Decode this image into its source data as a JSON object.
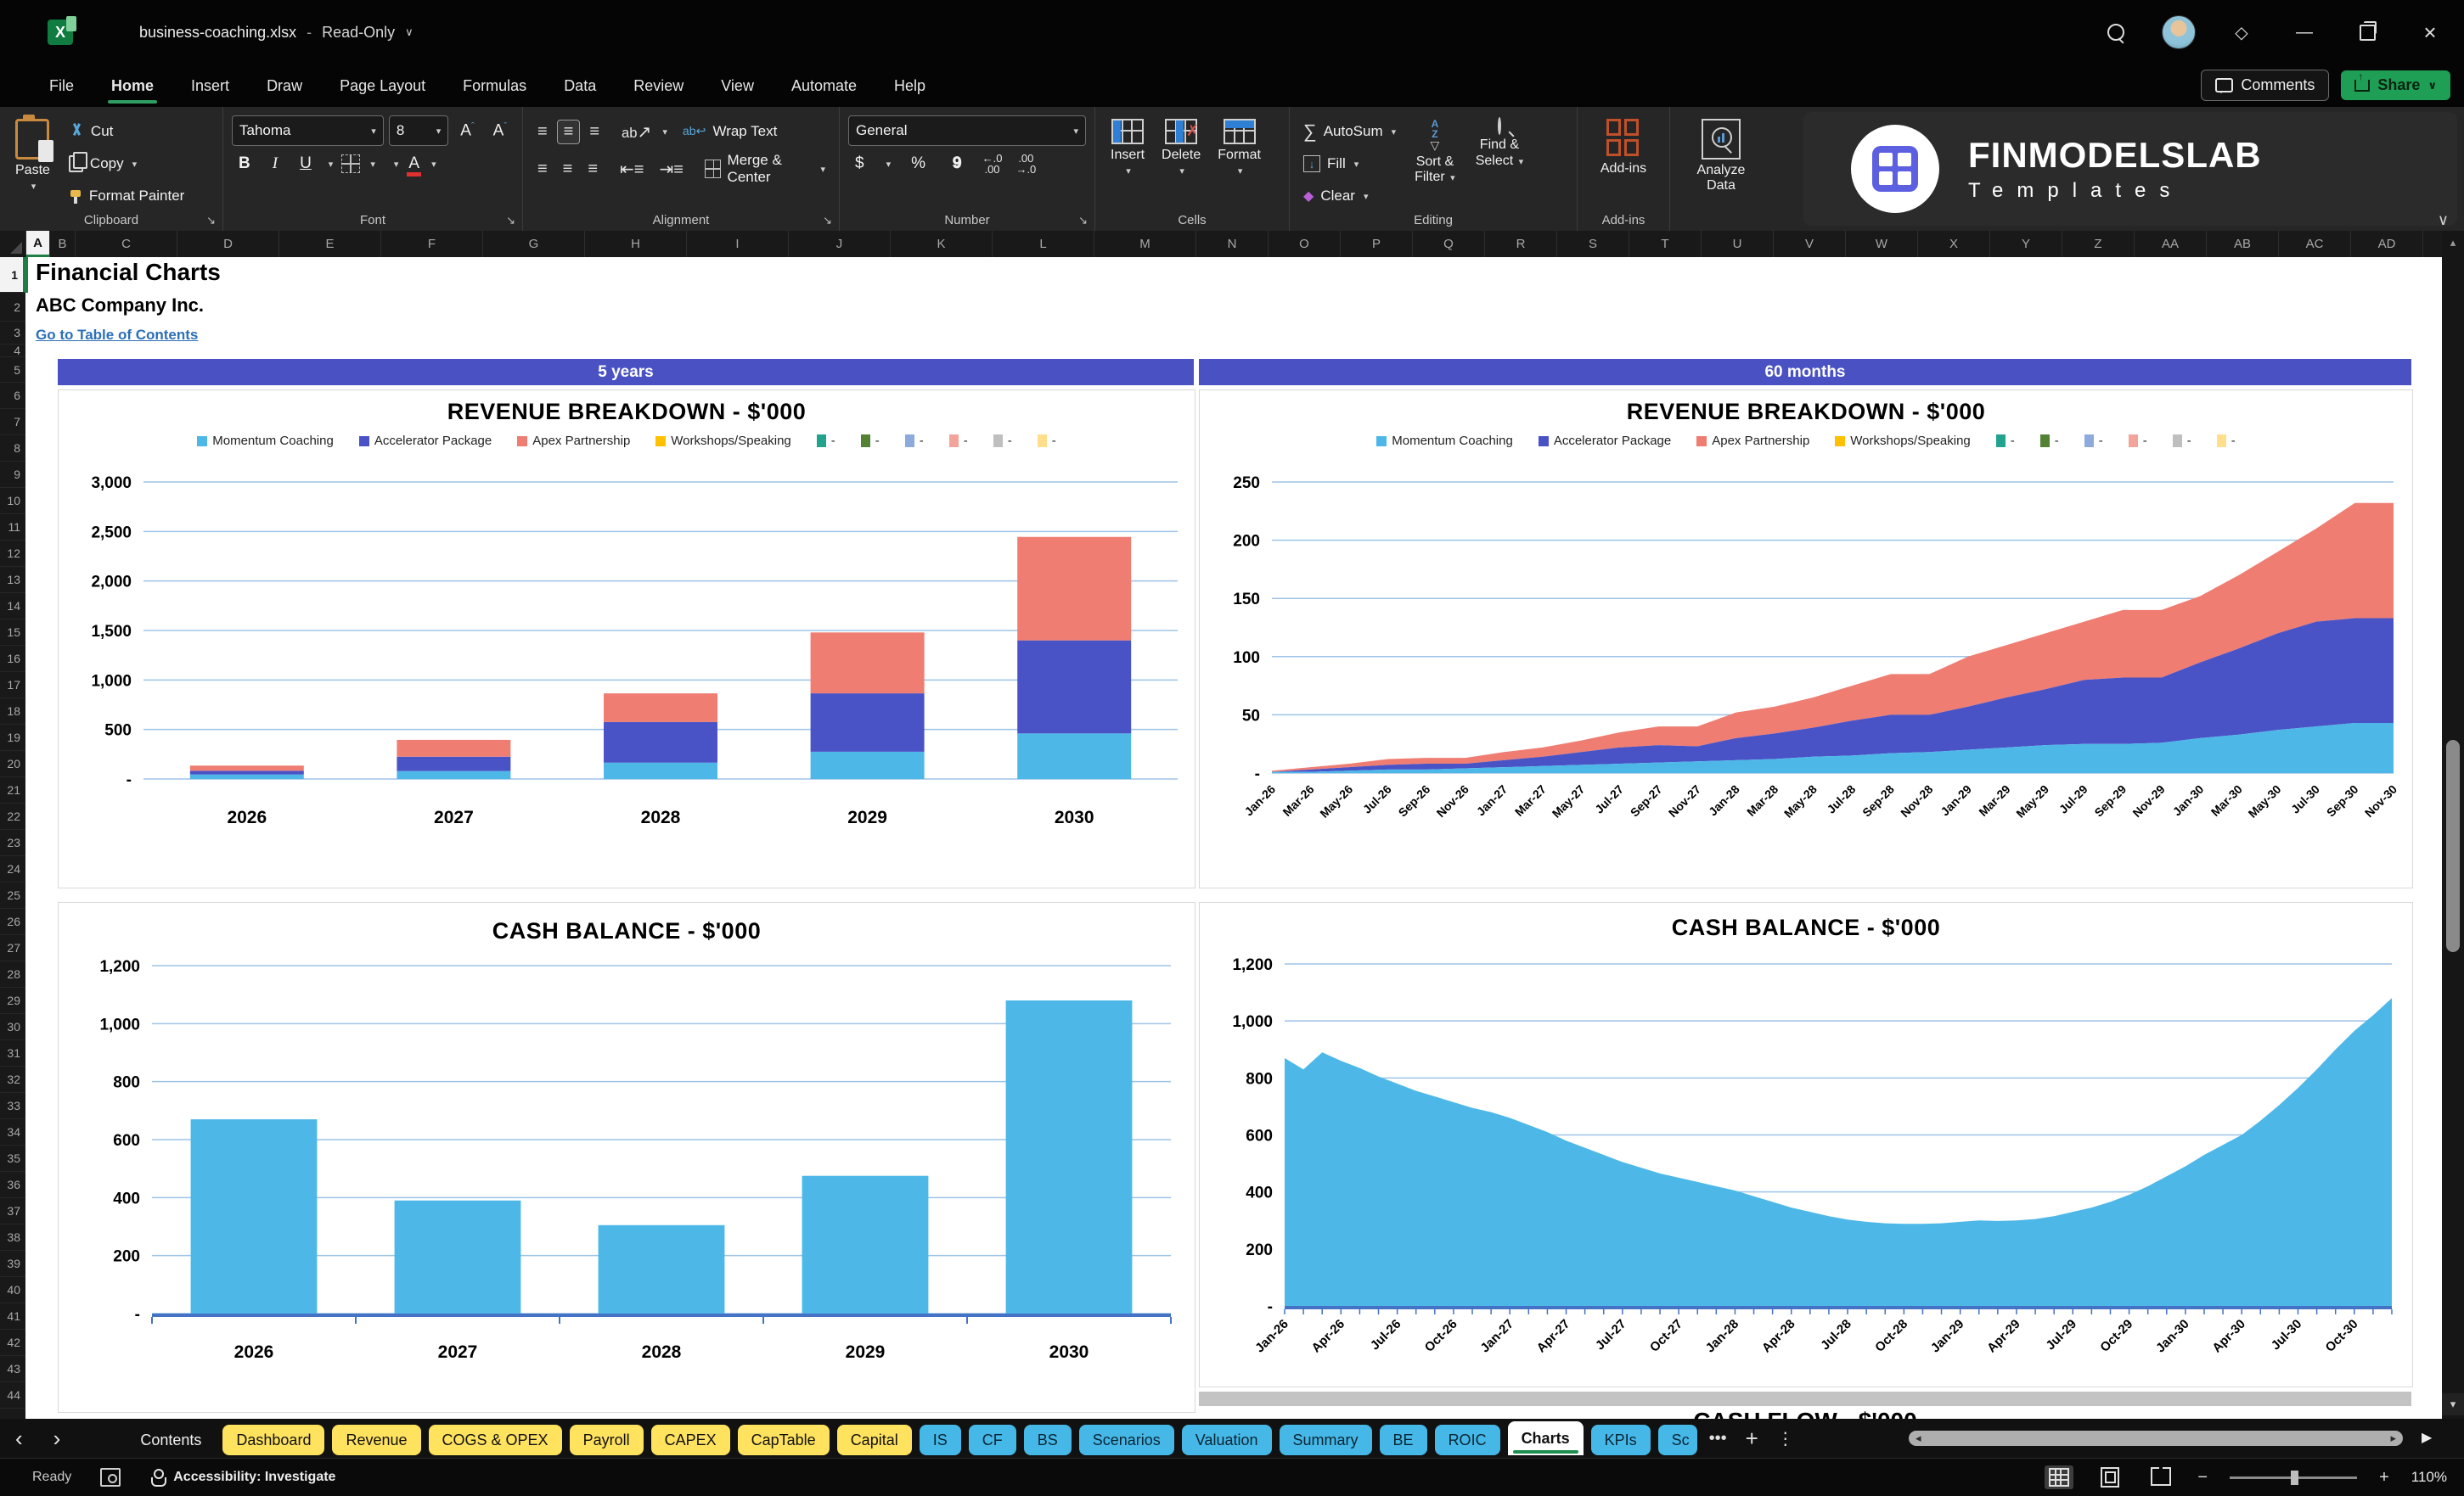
{
  "app": {
    "title": "business-coaching.xlsx",
    "mode": "Read-Only",
    "comments_label": "Comments",
    "share_label": "Share"
  },
  "menu": {
    "tabs": [
      "File",
      "Home",
      "Insert",
      "Draw",
      "Page Layout",
      "Formulas",
      "Data",
      "Review",
      "View",
      "Automate",
      "Help"
    ],
    "active": "Home"
  },
  "ribbon": {
    "clipboard": {
      "label": "Clipboard",
      "paste": "Paste",
      "cut": "Cut",
      "copy": "Copy",
      "format_painter": "Format Painter"
    },
    "font": {
      "label": "Font",
      "font_name": "Tahoma",
      "font_size": "8"
    },
    "alignment": {
      "label": "Alignment",
      "wrap": "Wrap Text",
      "merge": "Merge & Center"
    },
    "number": {
      "label": "Number",
      "format": "General"
    },
    "cells": {
      "label": "Cells",
      "insert": "Insert",
      "delete": "Delete",
      "format": "Format"
    },
    "editing": {
      "label": "Editing",
      "autosum": "AutoSum",
      "fill": "Fill",
      "clear": "Clear",
      "sort1": "Sort &",
      "sort2": "Filter",
      "find1": "Find &",
      "find2": "Select"
    },
    "addins": {
      "label": "Add-ins",
      "button": "Add-ins"
    },
    "analyze": {
      "line1": "Analyze",
      "line2": "Data"
    }
  },
  "logo": {
    "name": "FINMODELSLAB",
    "sub": "Templates"
  },
  "grid": {
    "title": "Financial Charts",
    "company": "ABC Company Inc.",
    "link": "Go to Table of Contents",
    "banner_left": "5 years",
    "banner_right": "60 months",
    "partial_next_title": "CASH FLOW - $'000",
    "columns": [
      "A",
      "B",
      "C",
      "D",
      "E",
      "F",
      "G",
      "H",
      "I",
      "J",
      "K",
      "L",
      "M",
      "N",
      "O",
      "P",
      "Q",
      "R",
      "S",
      "T",
      "U",
      "V",
      "W",
      "X",
      "Y",
      "Z",
      "AA",
      "AB",
      "AC",
      "AD"
    ],
    "last_row": 44
  },
  "colors": {
    "cyan": "#4DB8E8",
    "indigo": "#4A53C6",
    "salmon": "#EF7D72",
    "yellow": "#FFC000",
    "banner": "#4A52C3",
    "gridline": "#9DC3E6",
    "axis_blue": "#4472C4",
    "extra_legend": [
      "#21A38E",
      "#548235",
      "#8EA9DB",
      "#F2A49A",
      "#BFBFBF",
      "#FFDE8C"
    ]
  },
  "chart_data": [
    {
      "id": "rev5y",
      "type": "stacked-bar",
      "title": "REVENUE BREAKDOWN - $'000",
      "categories": [
        "2026",
        "2027",
        "2028",
        "2029",
        "2030"
      ],
      "series": [
        {
          "name": "Momentum Coaching",
          "color": "#4DB8E8",
          "values": [
            45,
            80,
            165,
            275,
            460
          ]
        },
        {
          "name": "Accelerator Package",
          "color": "#4A53C6",
          "values": [
            38,
            145,
            410,
            590,
            940
          ]
        },
        {
          "name": "Apex Partnership",
          "color": "#EF7D72",
          "values": [
            52,
            170,
            290,
            615,
            1045
          ]
        },
        {
          "name": "Workshops/Speaking",
          "color": "#FFC000",
          "values": [
            0,
            0,
            0,
            0,
            0
          ]
        }
      ],
      "extra_legend_label": "-",
      "ylim": [
        0,
        3000
      ],
      "yticks": [
        "-",
        "500",
        "1,000",
        "1,500",
        "2,000",
        "2,500",
        "3,000"
      ]
    },
    {
      "id": "rev60m",
      "type": "stacked-area",
      "title": "REVENUE BREAKDOWN - $'000",
      "x": [
        "Jan-26",
        "Mar-26",
        "May-26",
        "Jul-26",
        "Sep-26",
        "Nov-26",
        "Jan-27",
        "Mar-27",
        "May-27",
        "Jul-27",
        "Sep-27",
        "Nov-27",
        "Jan-28",
        "Mar-28",
        "May-28",
        "Jul-28",
        "Sep-28",
        "Nov-28",
        "Jan-29",
        "Mar-29",
        "May-29",
        "Jul-29",
        "Sep-29",
        "Nov-29",
        "Jan-30",
        "Mar-30",
        "May-30",
        "Jul-30",
        "Sep-30",
        "Nov-30"
      ],
      "series": [
        {
          "name": "Momentum Coaching",
          "color": "#4DB8E8",
          "values": [
            1,
            1,
            2,
            3,
            3,
            4,
            5,
            6,
            7,
            8,
            9,
            10,
            11,
            12,
            14,
            15,
            17,
            18,
            20,
            22,
            24,
            25,
            25,
            26,
            30,
            33,
            37,
            40,
            43,
            43
          ]
        },
        {
          "name": "Accelerator Package",
          "color": "#4A53C6",
          "values": [
            0,
            2,
            3,
            4,
            5,
            4,
            6,
            8,
            11,
            14,
            15,
            13,
            19,
            22,
            25,
            30,
            33,
            32,
            37,
            43,
            48,
            55,
            57,
            56,
            65,
            74,
            83,
            90,
            90,
            90
          ]
        },
        {
          "name": "Apex Partnership",
          "color": "#EF7D72",
          "values": [
            1,
            2,
            3,
            5,
            5,
            5,
            7,
            8,
            10,
            13,
            16,
            17,
            22,
            23,
            26,
            30,
            35,
            35,
            43,
            45,
            48,
            50,
            58,
            58,
            57,
            63,
            70,
            80,
            99,
            99
          ]
        },
        {
          "name": "Workshops/Speaking",
          "color": "#FFC000",
          "values": [
            0,
            0,
            0,
            0,
            0,
            0,
            0,
            0,
            0,
            0,
            0,
            0,
            0,
            0,
            0,
            0,
            0,
            0,
            0,
            0,
            0,
            0,
            0,
            0,
            0,
            0,
            0,
            0,
            0,
            0
          ]
        }
      ],
      "extra_legend_label": "-",
      "ylim": [
        0,
        250
      ],
      "yticks": [
        "-",
        "50",
        "100",
        "150",
        "200",
        "250"
      ]
    },
    {
      "id": "cash5y",
      "type": "bar",
      "title": "CASH BALANCE - $'000",
      "categories": [
        "2026",
        "2027",
        "2028",
        "2029",
        "2030"
      ],
      "series": [
        {
          "name": "Cash Balance",
          "color": "#4DB8E8",
          "values": [
            670,
            390,
            305,
            475,
            1080
          ]
        }
      ],
      "ylim": [
        0,
        1200
      ],
      "yticks": [
        "-",
        "200",
        "400",
        "600",
        "800",
        "1,000",
        "1,200"
      ]
    },
    {
      "id": "cash60m",
      "type": "area",
      "title": "CASH BALANCE - $'000",
      "xlabels": [
        "Jan-26",
        "Apr-26",
        "Jul-26",
        "Oct-26",
        "Jan-27",
        "Apr-27",
        "Jul-27",
        "Oct-27",
        "Jan-28",
        "Apr-28",
        "Jul-28",
        "Oct-28",
        "Jan-29",
        "Apr-29",
        "Jul-29",
        "Oct-29",
        "Jan-30",
        "Apr-30",
        "Jul-30",
        "Oct-30"
      ],
      "label_every": 3,
      "series": [
        {
          "name": "Cash Balance",
          "color": "#4DB8E8",
          "values": [
            870,
            830,
            890,
            860,
            835,
            805,
            780,
            755,
            735,
            715,
            695,
            680,
            660,
            635,
            610,
            580,
            555,
            530,
            505,
            485,
            465,
            450,
            435,
            420,
            405,
            385,
            365,
            345,
            330,
            315,
            303,
            295,
            290,
            288,
            288,
            290,
            295,
            300,
            298,
            300,
            305,
            315,
            330,
            345,
            365,
            390,
            420,
            455,
            490,
            530,
            565,
            600,
            650,
            705,
            765,
            830,
            900,
            965,
            1020,
            1080
          ]
        }
      ],
      "ylim": [
        0,
        1200
      ],
      "yticks": [
        "-",
        "200",
        "400",
        "600",
        "800",
        "1,000",
        "1,200"
      ]
    }
  ],
  "sheet_tabs": [
    {
      "label": "Contents",
      "style": "plain"
    },
    {
      "label": "Dashboard",
      "style": "yellow"
    },
    {
      "label": "Revenue",
      "style": "yellow"
    },
    {
      "label": "COGS & OPEX",
      "style": "yellow"
    },
    {
      "label": "Payroll",
      "style": "yellow"
    },
    {
      "label": "CAPEX",
      "style": "yellow"
    },
    {
      "label": "CapTable",
      "style": "yellow"
    },
    {
      "label": "Capital",
      "style": "yellow"
    },
    {
      "label": "IS",
      "style": "blue"
    },
    {
      "label": "CF",
      "style": "blue"
    },
    {
      "label": "BS",
      "style": "blue"
    },
    {
      "label": "Scenarios",
      "style": "blue"
    },
    {
      "label": "Valuation",
      "style": "blue"
    },
    {
      "label": "Summary",
      "style": "blue"
    },
    {
      "label": "BE",
      "style": "blue"
    },
    {
      "label": "ROIC",
      "style": "blue"
    },
    {
      "label": "Charts",
      "style": "active"
    },
    {
      "label": "KPIs",
      "style": "blue"
    },
    {
      "label": "Sc",
      "style": "blue partial"
    }
  ],
  "status": {
    "ready": "Ready",
    "accessibility": "Accessibility: Investigate",
    "zoom": "110%"
  }
}
